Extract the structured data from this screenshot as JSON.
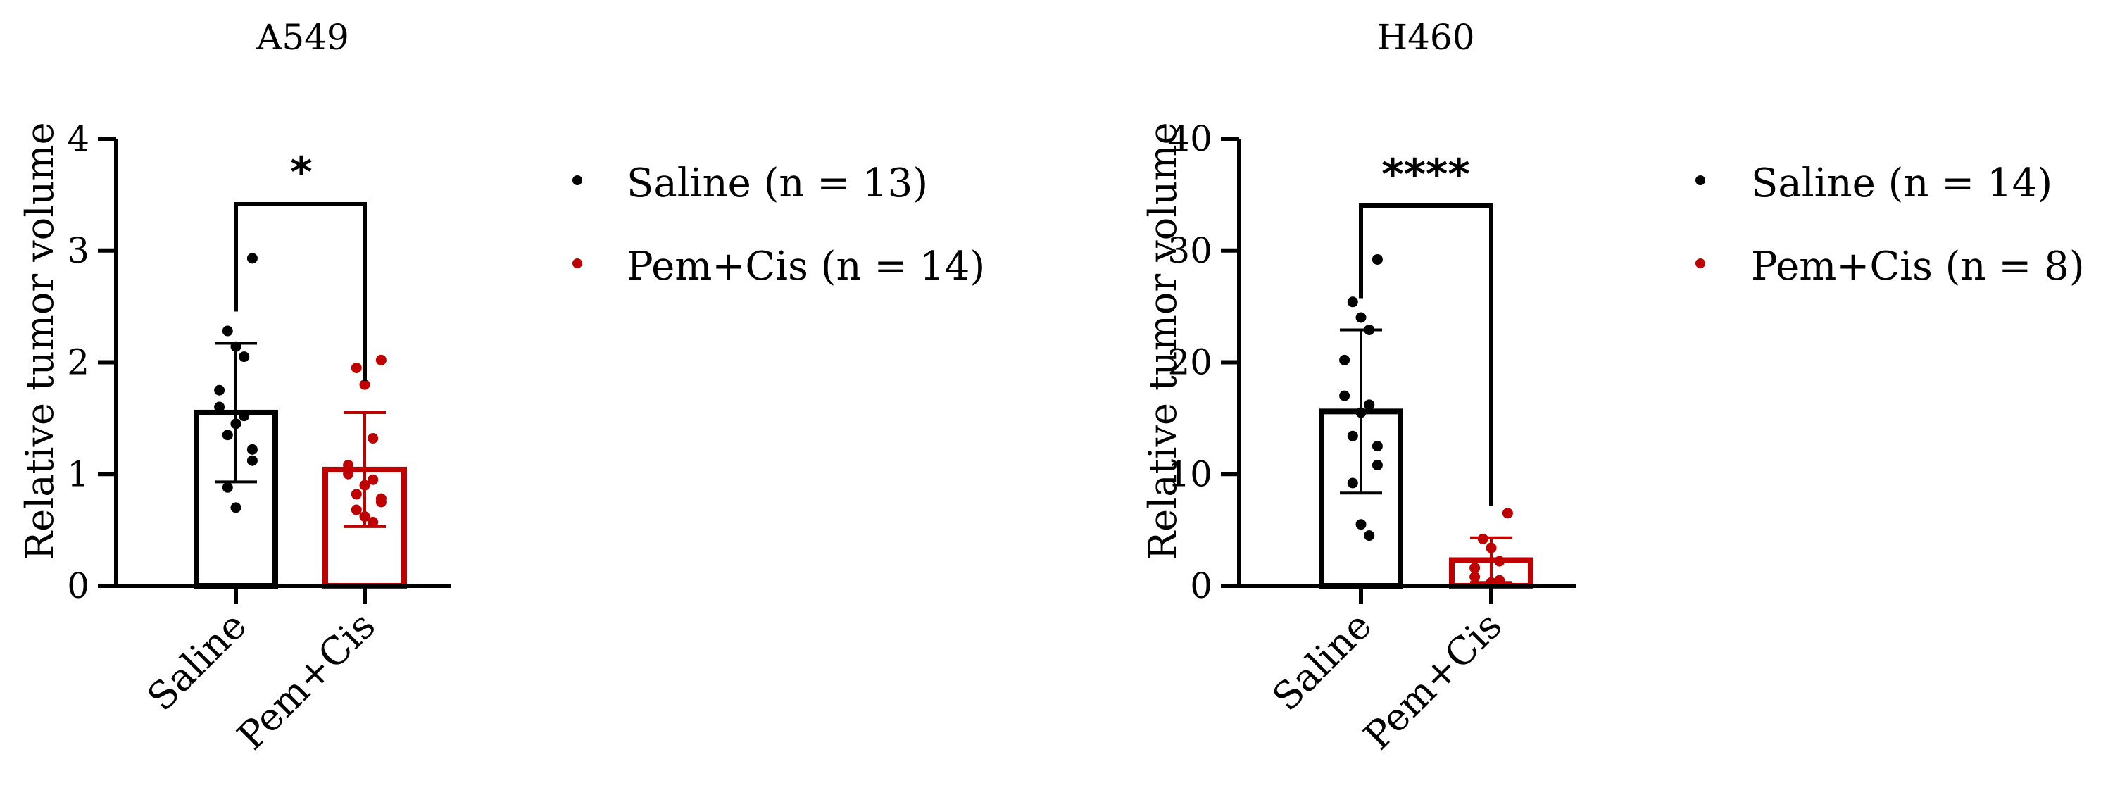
{
  "chart_data": [
    {
      "type": "bar",
      "title": "A549",
      "ylabel": "Relative tumor volume",
      "xlabel": "",
      "ylim": [
        0,
        4
      ],
      "yticks": [
        "0",
        "1",
        "2",
        "3",
        "4"
      ],
      "categories": [
        "Saline",
        "Pem+Cis"
      ],
      "series": [
        {
          "name": "Saline (n = 13)",
          "color": "#000000",
          "mean": 1.55,
          "sd": 0.62,
          "points": [
            2.93,
            2.28,
            2.14,
            2.05,
            1.75,
            1.6,
            1.52,
            1.45,
            1.35,
            1.22,
            1.12,
            0.88,
            0.7
          ]
        },
        {
          "name": "Pem+Cis (n = 14)",
          "color": "#c00000",
          "mean": 1.04,
          "sd": 0.51,
          "points": [
            2.02,
            1.95,
            1.8,
            1.32,
            1.08,
            1.0,
            0.95,
            0.9,
            0.82,
            0.78,
            0.75,
            0.68,
            0.62,
            0.57
          ]
        }
      ],
      "significance": "*",
      "legend_position": "right"
    },
    {
      "type": "bar",
      "title": "H460",
      "ylabel": "Relative tumor volume",
      "xlabel": "",
      "ylim": [
        0,
        40
      ],
      "yticks": [
        "0",
        "10",
        "20",
        "30",
        "40"
      ],
      "categories": [
        "Saline",
        "Pem+Cis"
      ],
      "series": [
        {
          "name": "Saline (n = 14)",
          "color": "#000000",
          "mean": 15.6,
          "sd": 7.3,
          "points": [
            29.2,
            25.4,
            24.0,
            22.9,
            20.2,
            17.0,
            16.2,
            15.5,
            13.4,
            12.5,
            10.8,
            9.2,
            5.5,
            4.5
          ]
        },
        {
          "name": "Pem+Cis (n = 8)",
          "color": "#c00000",
          "mean": 2.3,
          "sd": 2.0,
          "points": [
            6.5,
            4.2,
            3.4,
            2.2,
            1.6,
            0.8,
            0.5,
            0.3
          ]
        }
      ],
      "significance": "****",
      "legend_position": "right"
    }
  ]
}
